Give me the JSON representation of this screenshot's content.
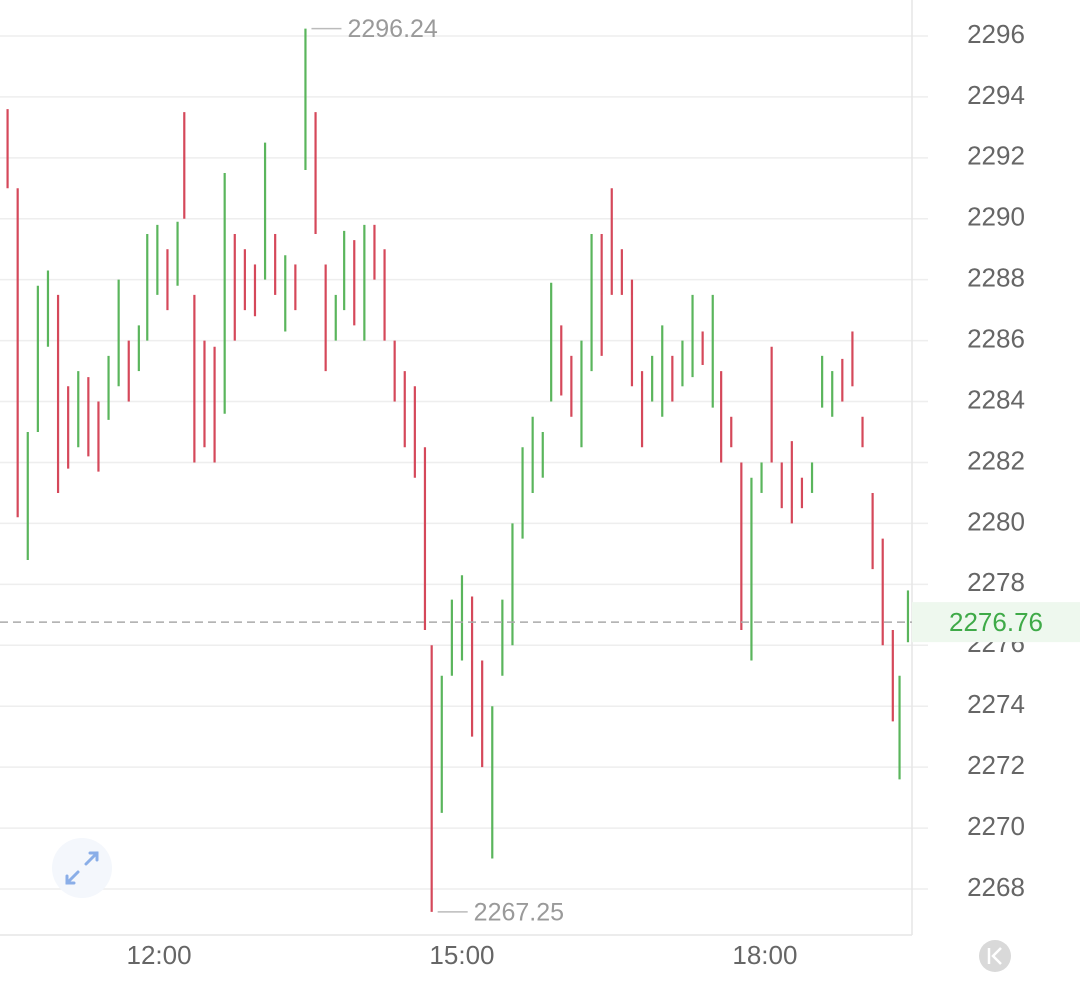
{
  "chart_data": {
    "type": "ohlc",
    "x": [
      630,
      636,
      642,
      648,
      654,
      660,
      666,
      672,
      678,
      684,
      690,
      696,
      702,
      708,
      713,
      719,
      725,
      731,
      735,
      741,
      747,
      753,
      759,
      765,
      771,
      777,
      783,
      789,
      795,
      801,
      807,
      813,
      819,
      825,
      830,
      836,
      842,
      848,
      854,
      860,
      866,
      872,
      878,
      882,
      888,
      894,
      900,
      906,
      912,
      918,
      924,
      930,
      936,
      942,
      948,
      953,
      959,
      965,
      971,
      977,
      983,
      989,
      995,
      1001,
      1007,
      1013,
      1019,
      1025,
      1031,
      1037,
      1043,
      1049,
      1054,
      1060,
      1066,
      1072,
      1078,
      1084,
      1090,
      1096,
      1102,
      1108,
      1114,
      1120,
      1126,
      1132,
      1138,
      1144,
      1150,
      1156,
      1160,
      1165
    ],
    "open": [
      2293.6,
      2291,
      2278.8,
      2283,
      2285.8,
      2287.5,
      2284.5,
      2282.5,
      2284.8,
      2284,
      2283.4,
      2284.5,
      2286,
      2285,
      2286,
      2287.5,
      2289,
      2287.8,
      2293.5,
      2287.5,
      2286,
      2285.8,
      2283.6,
      2289.5,
      2289,
      2288.5,
      2288,
      2289.5,
      2286.3,
      2288.5,
      2291.6,
      2293.5,
      2288.5,
      2286,
      2287,
      2289.3,
      2286,
      2289.8,
      2289,
      2286,
      2285,
      2284.5,
      2282.5,
      2276,
      2270.5,
      2275,
      2275.5,
      2277.6,
      2275.5,
      2269,
      2275,
      2276,
      2279.5,
      2281,
      2281.5,
      2284,
      2286.5,
      2285.5,
      2282.5,
      2285,
      2289.5,
      2291,
      2289,
      2288,
      2285,
      2284,
      2283.5,
      2285.5,
      2284.5,
      2284.8,
      2286.3,
      2283.8,
      2285,
      2283.5,
      2282,
      2275.5,
      2281,
      2285.8,
      2282,
      2282.7,
      2281.5,
      2281,
      2283.8,
      2283.5,
      2285.4,
      2286.3,
      2283.5,
      2281,
      2279.5,
      2276.5,
      2271.6,
      2276.1
    ],
    "high": [
      2293.6,
      2291,
      2283,
      2287.8,
      2288.3,
      2287.5,
      2284.5,
      2285,
      2284.8,
      2284,
      2285.5,
      2288,
      2286,
      2286.5,
      2289.5,
      2289.8,
      2289,
      2289.9,
      2293.5,
      2287.5,
      2286,
      2285.8,
      2291.5,
      2289.5,
      2289,
      2288.5,
      2292.5,
      2289.5,
      2288.8,
      2288.5,
      2296.24,
      2293.5,
      2288.5,
      2287.5,
      2289.6,
      2289.3,
      2289.8,
      2289.8,
      2289,
      2286,
      2285,
      2284.5,
      2282.5,
      2276,
      2275,
      2277.5,
      2278.3,
      2277.6,
      2275.5,
      2274,
      2277.5,
      2280,
      2282.5,
      2283.5,
      2283,
      2287.9,
      2286.5,
      2285.5,
      2286,
      2289.5,
      2289.5,
      2291,
      2289,
      2288,
      2285,
      2285.5,
      2286.5,
      2285.5,
      2286,
      2287.5,
      2286.3,
      2287.5,
      2285,
      2283.5,
      2282,
      2281.5,
      2282,
      2285.8,
      2282,
      2282.7,
      2281.5,
      2282,
      2285.5,
      2285,
      2285.4,
      2286.3,
      2283.5,
      2281,
      2279.5,
      2276.5,
      2275,
      2277.8
    ],
    "low": [
      2291,
      2280.2,
      2278.8,
      2283,
      2285.8,
      2281,
      2281.8,
      2282.5,
      2282.2,
      2281.7,
      2283.4,
      2284.5,
      2284,
      2285,
      2286,
      2287.5,
      2287,
      2287.8,
      2290,
      2282,
      2282.5,
      2282,
      2283.6,
      2286,
      2287,
      2286.8,
      2288,
      2287.5,
      2286.3,
      2287,
      2291.6,
      2289.5,
      2285,
      2286,
      2287,
      2286.5,
      2286,
      2288,
      2286,
      2284,
      2282.5,
      2281.5,
      2276.5,
      2267.25,
      2270.5,
      2275,
      2275.5,
      2273,
      2272,
      2269,
      2275,
      2276,
      2279.5,
      2281,
      2281.5,
      2284,
      2284.2,
      2283.5,
      2282.5,
      2285,
      2285.5,
      2287.5,
      2287.5,
      2284.5,
      2282.5,
      2284,
      2283.5,
      2284,
      2284.5,
      2284.8,
      2285.2,
      2283.8,
      2282,
      2282.5,
      2276.5,
      2275.5,
      2281,
      2282,
      2280.5,
      2280,
      2280.5,
      2281,
      2283.8,
      2283.5,
      2284,
      2284.5,
      2282.5,
      2278.5,
      2276,
      2273.5,
      2271.6,
      2276.1
    ],
    "close": [
      2291,
      2280.2,
      2283,
      2287.8,
      2288.3,
      2281,
      2281.8,
      2285,
      2282.2,
      2281.7,
      2285.5,
      2288,
      2284,
      2286.5,
      2289.5,
      2289.8,
      2287,
      2289.9,
      2290,
      2282,
      2282.5,
      2282,
      2291.5,
      2286,
      2287,
      2286.8,
      2292.5,
      2287.5,
      2288.8,
      2287,
      2296.24,
      2289.5,
      2285,
      2287.5,
      2289.6,
      2286.5,
      2289.8,
      2288,
      2286,
      2284,
      2282.5,
      2281.5,
      2276.5,
      2267.25,
      2275,
      2277.5,
      2278.3,
      2273,
      2272,
      2274,
      2277.5,
      2280,
      2282.5,
      2283.5,
      2283,
      2287.9,
      2284.2,
      2283.5,
      2286,
      2289.5,
      2285.5,
      2287.5,
      2287.5,
      2284.5,
      2282.5,
      2285.5,
      2286.5,
      2284,
      2286,
      2287.5,
      2285.2,
      2287.5,
      2282,
      2282.5,
      2276.5,
      2281.5,
      2282,
      2282,
      2280.5,
      2280,
      2280.5,
      2282,
      2285.5,
      2285,
      2284,
      2284.5,
      2282.5,
      2278.5,
      2276,
      2273.5,
      2275,
      2276.76
    ],
    "up_color": "#5ab55c",
    "down_color": "#d5485a",
    "xlim": [
      625.5,
      1167.4
    ],
    "xticks": [
      {
        "value": 720,
        "label": "12:00"
      },
      {
        "value": 900,
        "label": "15:00"
      },
      {
        "value": 1080,
        "label": "18:00"
      }
    ],
    "ylim": [
      2266.49,
      2297.18
    ],
    "yticks": [
      2268,
      2270,
      2272,
      2274,
      2276,
      2278,
      2280,
      2282,
      2284,
      2286,
      2288,
      2290,
      2292,
      2294,
      2296
    ],
    "grid": true
  }
}
